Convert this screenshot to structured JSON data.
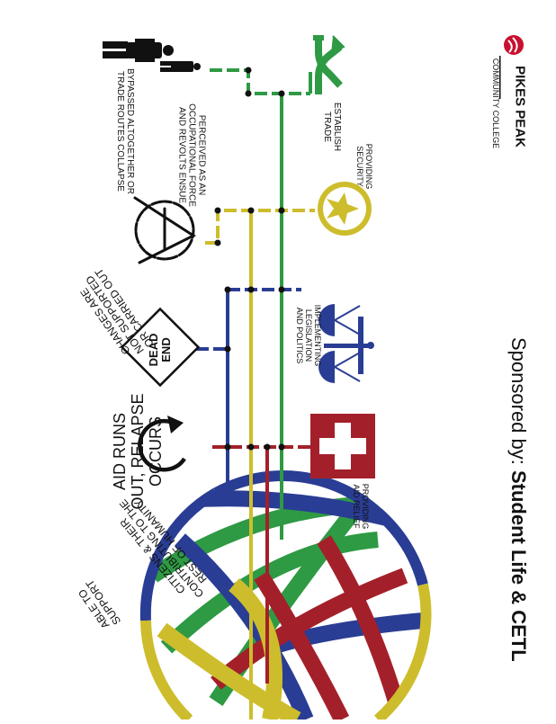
{
  "logo": {
    "name": "PIKES PEAK",
    "sub": "COMMUNITY COLLEGE"
  },
  "sponsor": {
    "prefix": "Sponsored by: ",
    "name": "Student Life & CETL"
  },
  "stations": {
    "trade": "ESTABLISH TRADE",
    "security": "PROVIDING SECURITY",
    "legislation": "IMPLEMENTING LEGISLATION AND POLITICS",
    "aid": "PROVIDING AID RELIEF"
  },
  "outcomes": {
    "bypassed": "BYPASSED ALTOGETHER OR TRADE ROUTES COLLAPSE",
    "occupational": "PERCEIVED AS AN OCCUPATIONAL FORCE AND REVOLTS ENSUE",
    "changes": "CHANGES ARE NOT SUPPORTED OR CARRIED OUT",
    "dead_end": "DEAD END",
    "aid_runs_out": "AID RUNS OUT, RELAPSE OCCURS",
    "citizens": "CITIZENS & THEIR CONTRIBUTING TO THE REST OF HUMANITY",
    "able_to_support": "ABLE TO SUPPORT"
  },
  "colors": {
    "green": "#2e9a44",
    "yellow": "#cdbd2c",
    "blue": "#2a3d94",
    "red": "#a3202a",
    "logo_red": "#c8102e"
  },
  "icons": [
    "people-icon",
    "crossing-arrows-icon",
    "star-badge-icon",
    "anarchy-symbol-icon",
    "scales-of-justice-icon",
    "dead-end-sign-icon",
    "circular-arrow-icon",
    "medical-cross-icon",
    "globe-icon",
    "logo-icon"
  ]
}
